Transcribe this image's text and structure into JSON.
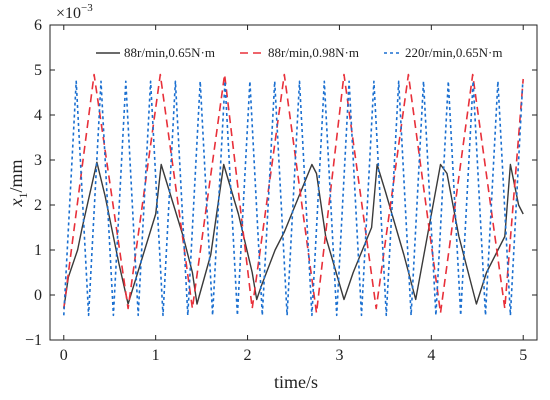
{
  "chart_data": {
    "type": "line",
    "title": "",
    "xlabel": "time/s",
    "ylabel": "x1/mm",
    "ylabel_parts": {
      "main": "x",
      "sub": "1",
      "unit": "/mm"
    },
    "y_multiplier": {
      "base": "×10",
      "exp": "−3"
    },
    "xlim": [
      -0.15,
      5.15
    ],
    "ylim": [
      -1,
      6
    ],
    "x_ticks": [
      0,
      1,
      2,
      3,
      4,
      5
    ],
    "y_ticks": [
      -1,
      0,
      1,
      2,
      3,
      4,
      5,
      6
    ],
    "x_tick_labels": [
      "0",
      "1",
      "2",
      "3",
      "4",
      "5"
    ],
    "y_tick_labels": [
      "−1",
      "0",
      "1",
      "2",
      "3",
      "4",
      "5",
      "6"
    ],
    "grid": false,
    "legend_position": "top",
    "series": [
      {
        "name": "88r/min,0.65N·m",
        "color": "#3a3a3a",
        "dash": "solid",
        "x": [
          0.0,
          0.05,
          0.15,
          0.2,
          0.36,
          0.45,
          0.6,
          0.7,
          0.76,
          0.85,
          1.0,
          1.06,
          1.3,
          1.4,
          1.45,
          1.6,
          1.74,
          1.9,
          2.05,
          2.1,
          2.15,
          2.3,
          2.4,
          2.7,
          2.75,
          2.85,
          3.05,
          3.15,
          3.35,
          3.41,
          3.5,
          3.7,
          3.83,
          4.1,
          4.17,
          4.3,
          4.49,
          4.6,
          4.8,
          4.86,
          4.95,
          5.0
        ],
        "y": [
          -0.3,
          0.4,
          1.0,
          1.5,
          2.95,
          2.2,
          0.7,
          -0.2,
          0.2,
          0.8,
          1.8,
          2.9,
          1.3,
          0.5,
          -0.2,
          0.9,
          2.9,
          1.8,
          0.5,
          -0.1,
          0.2,
          1.0,
          1.4,
          2.9,
          2.7,
          1.3,
          -0.1,
          0.5,
          1.5,
          2.9,
          2.3,
          0.9,
          -0.1,
          2.9,
          2.7,
          1.3,
          -0.2,
          0.5,
          1.3,
          2.9,
          2.0,
          1.8
        ]
      },
      {
        "name": "88r/min,0.98N·m",
        "color": "#e8303a",
        "dash": "dashed",
        "peaks": [
          0.33,
          1.05,
          1.75,
          2.4,
          3.05,
          3.75,
          4.45
        ],
        "peak_values": [
          4.9,
          4.9,
          4.9,
          4.9,
          4.9,
          4.9,
          4.9
        ],
        "troughs": [
          0.0,
          0.7,
          1.4,
          2.05,
          2.75,
          3.4,
          4.1,
          4.8
        ],
        "trough_values": [
          -0.3,
          -0.3,
          -0.3,
          -0.3,
          -0.4,
          -0.3,
          -0.4,
          -0.3
        ],
        "x": [
          0.0,
          0.33,
          0.7,
          1.05,
          1.4,
          1.75,
          2.05,
          2.4,
          2.75,
          3.05,
          3.4,
          3.75,
          4.1,
          4.45,
          4.8,
          5.0
        ],
        "y": [
          -0.3,
          4.9,
          -0.3,
          4.9,
          -0.3,
          4.9,
          -0.3,
          4.9,
          -0.4,
          4.9,
          -0.3,
          4.9,
          -0.4,
          4.9,
          -0.3,
          4.8
        ]
      },
      {
        "name": "220r/min,0.65N·m",
        "color": "#1a6fd0",
        "dash": "dotted",
        "period": 0.27,
        "first_trough_x": 0.0,
        "peak_value": 4.75,
        "trough_value": -0.45,
        "x_range": [
          0,
          5.0
        ]
      }
    ]
  }
}
